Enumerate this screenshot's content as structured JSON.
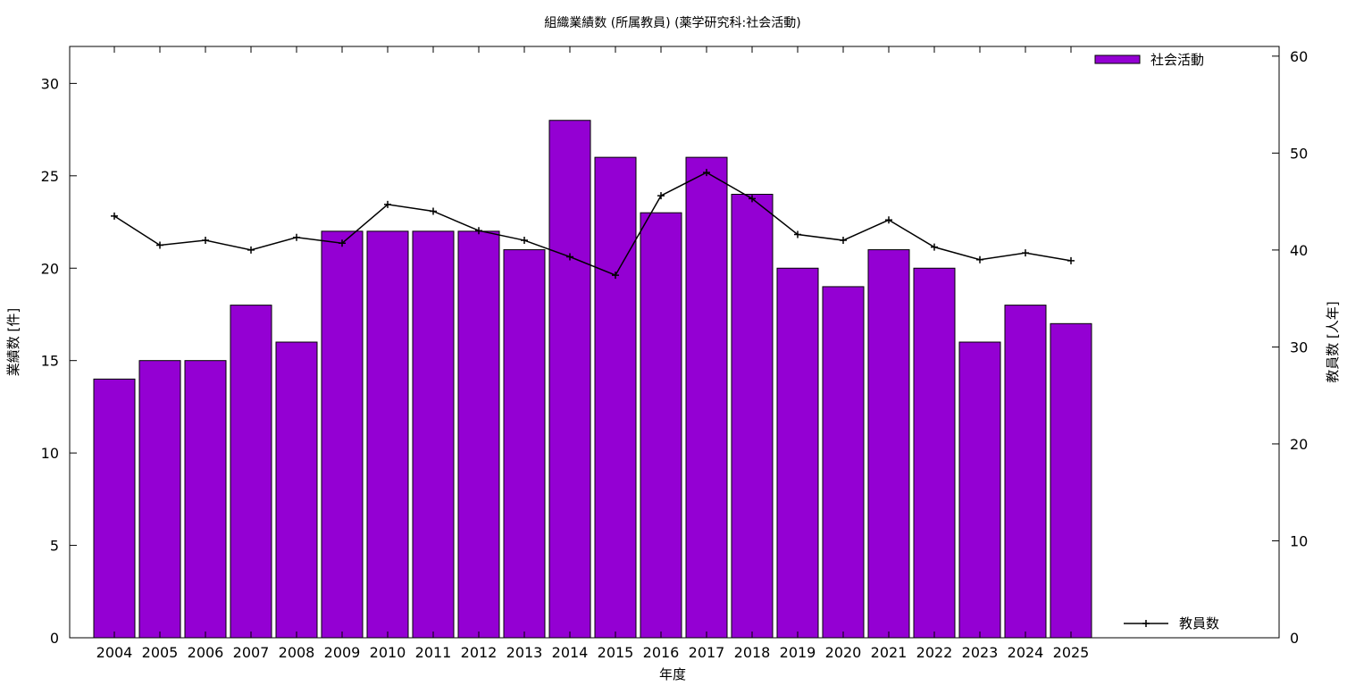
{
  "chart_data": {
    "type": "bar",
    "title": "組織業績数 (所属教員) (薬学研究科:社会活動)",
    "xlabel": "年度",
    "ylabel": "業績数 [件]",
    "y2label": "教員数 [人年]",
    "categories": [
      "2004",
      "2005",
      "2006",
      "2007",
      "2008",
      "2009",
      "2010",
      "2011",
      "2012",
      "2013",
      "2014",
      "2015",
      "2016",
      "2017",
      "2018",
      "2019",
      "2020",
      "2021",
      "2022",
      "2023",
      "2024",
      "2025"
    ],
    "ylim": [
      0,
      32
    ],
    "yticks": [
      0,
      5,
      10,
      15,
      20,
      25,
      30
    ],
    "y2lim": [
      0,
      61
    ],
    "y2ticks": [
      0,
      10,
      20,
      30,
      40,
      50,
      60
    ],
    "grid": false,
    "series": [
      {
        "name": "社会活動",
        "type": "bar",
        "axis": "left",
        "color": "#9400d3",
        "values": [
          14,
          15,
          15,
          18,
          16,
          22,
          22,
          22,
          22,
          21,
          28,
          26,
          23,
          26,
          24,
          20,
          19,
          21,
          20,
          16,
          18,
          17
        ]
      },
      {
        "name": "教員数",
        "type": "line",
        "axis": "right",
        "color": "#000000",
        "marker": "plus",
        "values": [
          43.5,
          40.5,
          41,
          40,
          41.3,
          40.7,
          44.7,
          44,
          42,
          41,
          39.3,
          37.4,
          45.6,
          48,
          45.3,
          41.6,
          41,
          43.1,
          40.3,
          39,
          39.7,
          38.9
        ]
      }
    ],
    "legend": [
      {
        "series": 0,
        "placement": "top-right"
      },
      {
        "series": 1,
        "placement": "bottom-right"
      }
    ]
  }
}
